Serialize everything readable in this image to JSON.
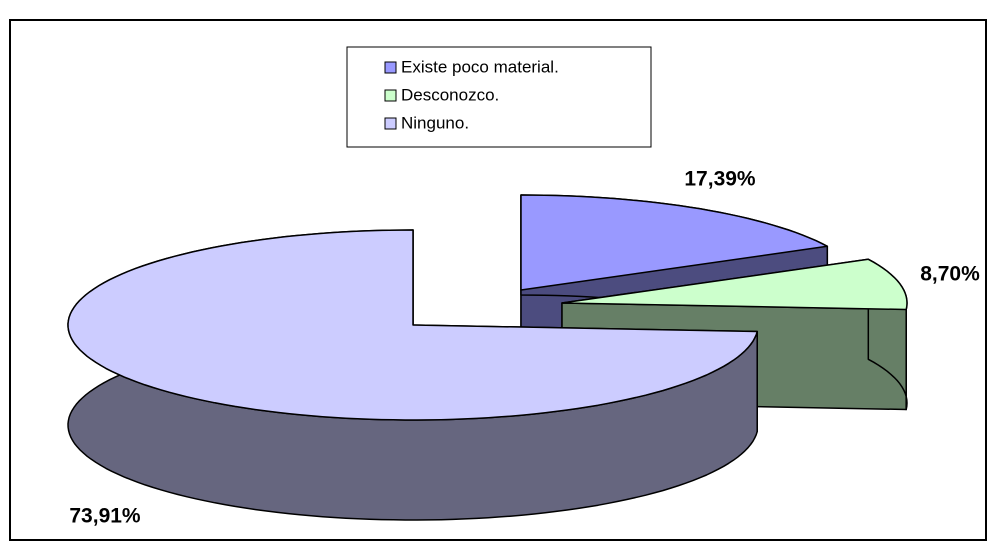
{
  "chart_data": {
    "type": "pie",
    "categories": [
      "Existe poco material.",
      "Desconozco.",
      "Ninguno."
    ],
    "values": [
      17.39,
      8.7,
      73.91
    ],
    "value_labels": [
      "17,39%",
      "8,70%",
      "73,91%"
    ],
    "colors": [
      "#9999ff",
      "#ccffcc",
      "#ccccff"
    ],
    "legend": "top"
  }
}
